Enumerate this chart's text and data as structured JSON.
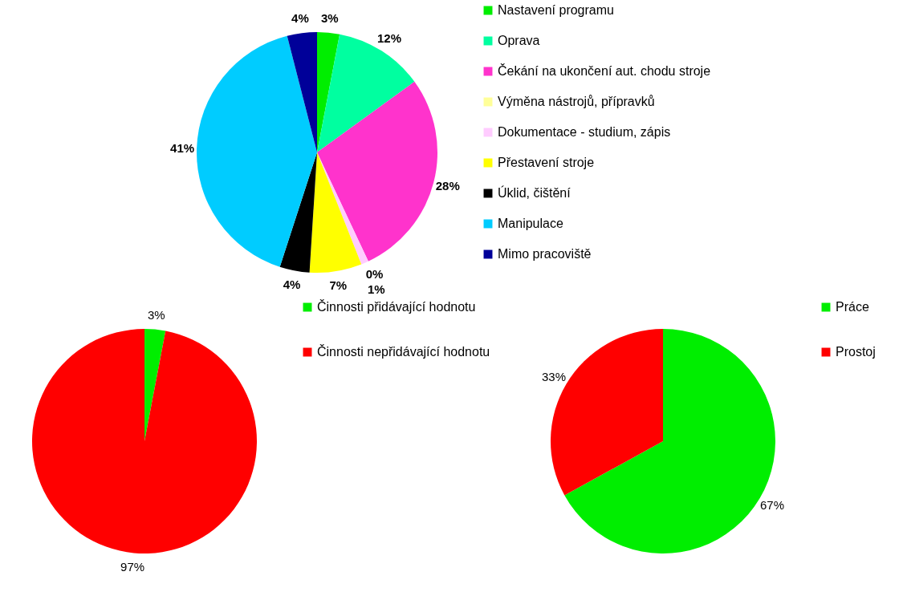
{
  "chart_data": [
    {
      "type": "pie",
      "categories": [
        "Nastavení programu",
        "Oprava",
        "Čekání na ukončení aut. chodu stroje",
        "Výměna nástrojů, přípravků",
        "Dokumentace - studium, zápis",
        "Přestavení stroje",
        "Úklid, čištění",
        "Manipulace",
        "Mimo pracoviště"
      ],
      "values": [
        3,
        12,
        28,
        0,
        1,
        7,
        4,
        41,
        4
      ],
      "value_labels": [
        "3%",
        "12%",
        "28%",
        "0%",
        "1%",
        "7%",
        "4%",
        "41%",
        "4%"
      ],
      "colors": [
        "#00ee00",
        "#00ffa0",
        "#ff33cc",
        "#ffff99",
        "#ffccff",
        "#ffff00",
        "#000000",
        "#00ccff",
        "#000099"
      ],
      "legend": "right"
    },
    {
      "type": "pie",
      "categories": [
        "Činnosti přidávající hodnotu",
        "Činnosti nepřidávající hodnotu"
      ],
      "values": [
        3,
        97
      ],
      "value_labels": [
        "3%",
        "97%"
      ],
      "colors": [
        "#00ee00",
        "#ff0000"
      ],
      "legend": "right"
    },
    {
      "type": "pie",
      "categories": [
        "Práce",
        "Prostoj"
      ],
      "values": [
        67,
        33
      ],
      "value_labels": [
        "67%",
        "33%"
      ],
      "colors": [
        "#00ee00",
        "#ff0000"
      ],
      "legend": "right"
    }
  ]
}
